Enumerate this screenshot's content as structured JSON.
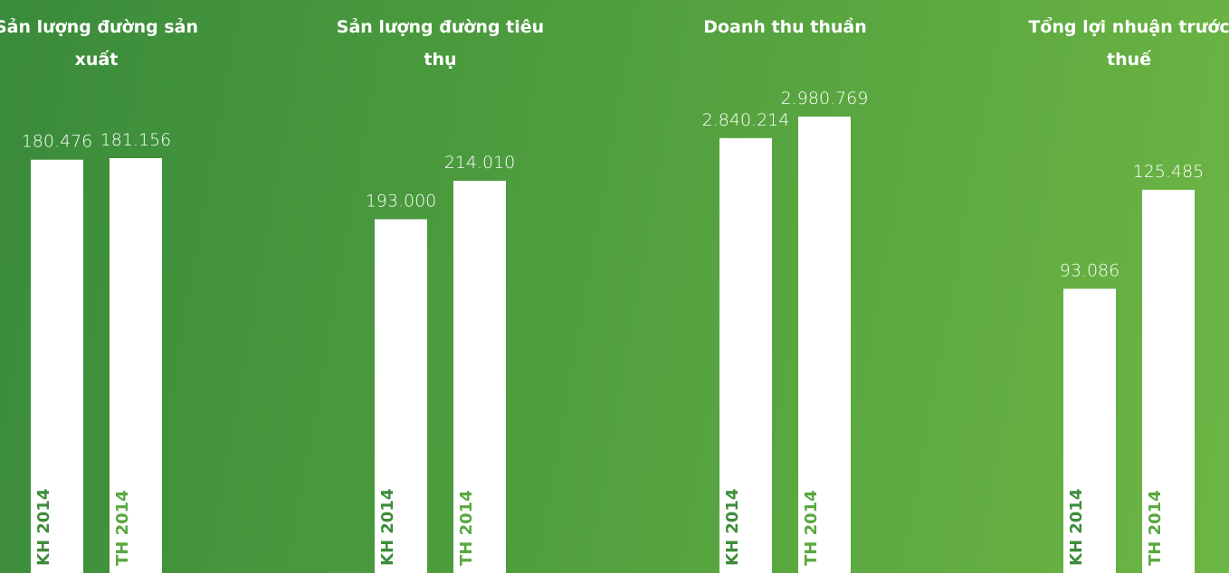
{
  "chart_data": [
    {
      "type": "bar",
      "title": "Sản lượng đường sản xuất",
      "categories": [
        "KH 2014",
        "TH 2014"
      ],
      "values": [
        180476,
        181156
      ],
      "value_labels": [
        "180.476",
        "181.156"
      ],
      "color": "#ffffff"
    },
    {
      "type": "bar",
      "title": "Sản lượng đường tiêu thụ",
      "categories": [
        "KH 2014",
        "TH 2014"
      ],
      "values": [
        193000,
        214010
      ],
      "value_labels": [
        "193.000",
        "214.010"
      ],
      "color": "#ffffff"
    },
    {
      "type": "bar",
      "title": "Doanh thu thuần",
      "categories": [
        "KH 2014",
        "TH 2014"
      ],
      "values": [
        2840214,
        2980769
      ],
      "value_labels": [
        "2.840.214",
        "2.980.769"
      ],
      "color": "#ffffff"
    },
    {
      "type": "bar",
      "title": "Tổng lợi nhuận trước thuế",
      "categories": [
        "KH 2014",
        "TH 2014"
      ],
      "values": [
        93086,
        125485
      ],
      "value_labels": [
        "93.086",
        "125.485"
      ],
      "color": "#ffffff"
    }
  ]
}
